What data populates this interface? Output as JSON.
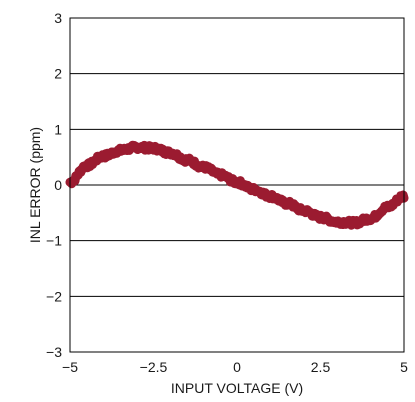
{
  "chart_data": {
    "type": "line",
    "xlabel": "INPUT VOLTAGE (V)",
    "ylabel": "INL ERROR (ppm)",
    "xlim": [
      -5,
      5
    ],
    "ylim": [
      -3,
      3
    ],
    "x_ticks": [
      -5,
      -2.5,
      0,
      2.5,
      5
    ],
    "x_tick_labels": [
      "−5",
      "−2.5",
      "0",
      "2.5",
      "5"
    ],
    "y_ticks": [
      -3,
      -2,
      -1,
      0,
      1,
      2,
      3
    ],
    "y_tick_labels": [
      "−3",
      "−2",
      "−1",
      "0",
      "1",
      "2",
      "3"
    ],
    "grid": "horizontal",
    "series": [
      {
        "color": "#9b1b30",
        "x": [
          -5,
          -4.5,
          -4,
          -3.5,
          -3,
          -2.5,
          -2,
          -1.5,
          -1,
          -0.5,
          0,
          0.5,
          1,
          1.5,
          2,
          2.5,
          3,
          3.5,
          4,
          4.5,
          5
        ],
        "y": [
          0.05,
          0.35,
          0.52,
          0.62,
          0.68,
          0.66,
          0.58,
          0.45,
          0.32,
          0.18,
          0.05,
          -0.08,
          -0.2,
          -0.33,
          -0.46,
          -0.58,
          -0.66,
          -0.68,
          -0.6,
          -0.4,
          -0.2
        ]
      }
    ]
  }
}
